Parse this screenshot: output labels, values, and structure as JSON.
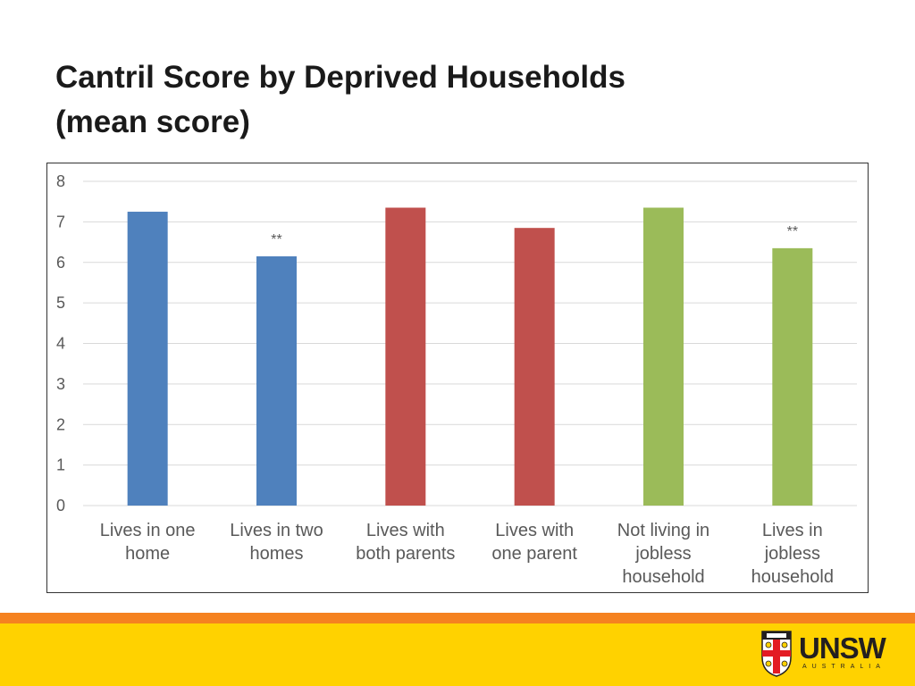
{
  "title": {
    "line1": "Cantril Score by Deprived Households",
    "line2": "(mean score)"
  },
  "chart_data": {
    "type": "bar",
    "categories": [
      [
        "Lives in one",
        "home"
      ],
      [
        "Lives in two",
        "homes"
      ],
      [
        "Lives with",
        "both parents"
      ],
      [
        "Lives with",
        "one parent"
      ],
      [
        "Not living in",
        "jobless",
        "household"
      ],
      [
        "Lives in",
        "jobless",
        "household"
      ]
    ],
    "values": [
      7.25,
      6.15,
      7.35,
      6.85,
      7.35,
      6.35
    ],
    "colors": [
      "#4f81bd",
      "#4f81bd",
      "#c0504d",
      "#c0504d",
      "#9bbb59",
      "#9bbb59"
    ],
    "annotations": [
      "",
      "**",
      "",
      "",
      "",
      "**"
    ],
    "title": "",
    "xlabel": "",
    "ylabel": "",
    "ylim": [
      0,
      8
    ],
    "yticks": [
      0,
      1,
      2,
      3,
      4,
      5,
      6,
      7,
      8
    ],
    "grid": true,
    "legend": "none"
  },
  "logo": {
    "word": "UNSW",
    "sub": "AUSTRALIA",
    "crest_colors": [
      "#e31b23",
      "#231f20",
      "#ffffff",
      "#ffd200"
    ]
  }
}
